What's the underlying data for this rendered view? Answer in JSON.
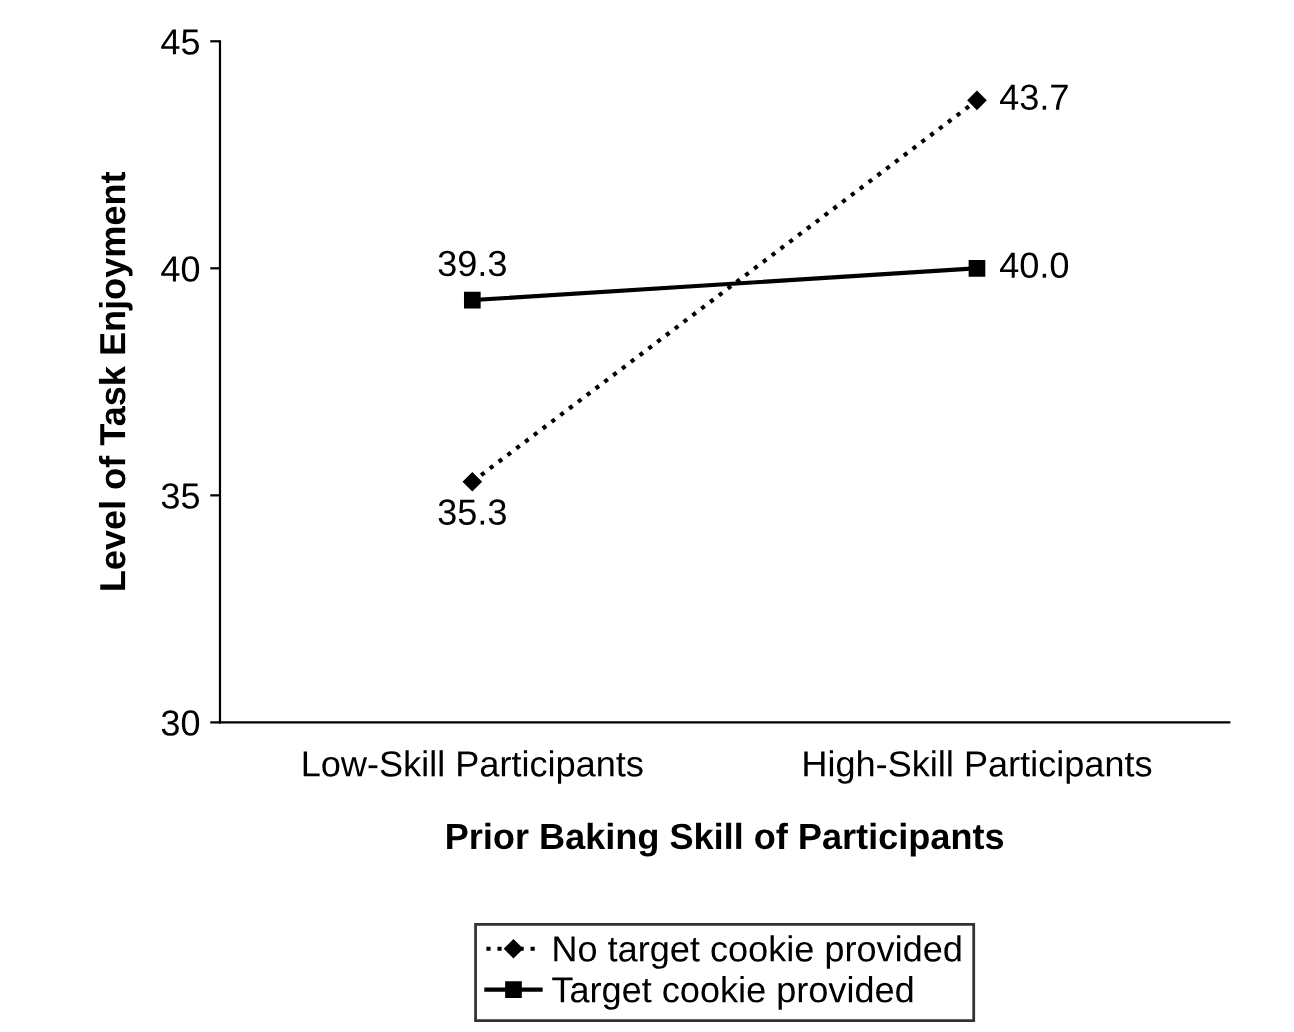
{
  "chart_data": {
    "type": "line",
    "xlabel": "Prior Baking Skill of Participants",
    "ylabel": "Level of Task Enjoyment",
    "categories": [
      "Low-Skill Participants",
      "High-Skill Participants"
    ],
    "series": [
      {
        "name": "No target cookie provided",
        "color": "#000000",
        "values": [
          35.3,
          43.7
        ],
        "value_labels": [
          "35.3",
          "43.7"
        ],
        "marker": "diamond",
        "line_style": "dotted"
      },
      {
        "name": "Target cookie provided",
        "color": "#000000",
        "values": [
          39.3,
          40.0
        ],
        "value_labels": [
          "39.3",
          "40.0"
        ],
        "marker": "square",
        "line_style": "solid"
      }
    ],
    "ylim": [
      30,
      45
    ],
    "yticks": [
      30,
      35,
      40,
      45
    ],
    "grid": false,
    "legend": "bottom"
  }
}
